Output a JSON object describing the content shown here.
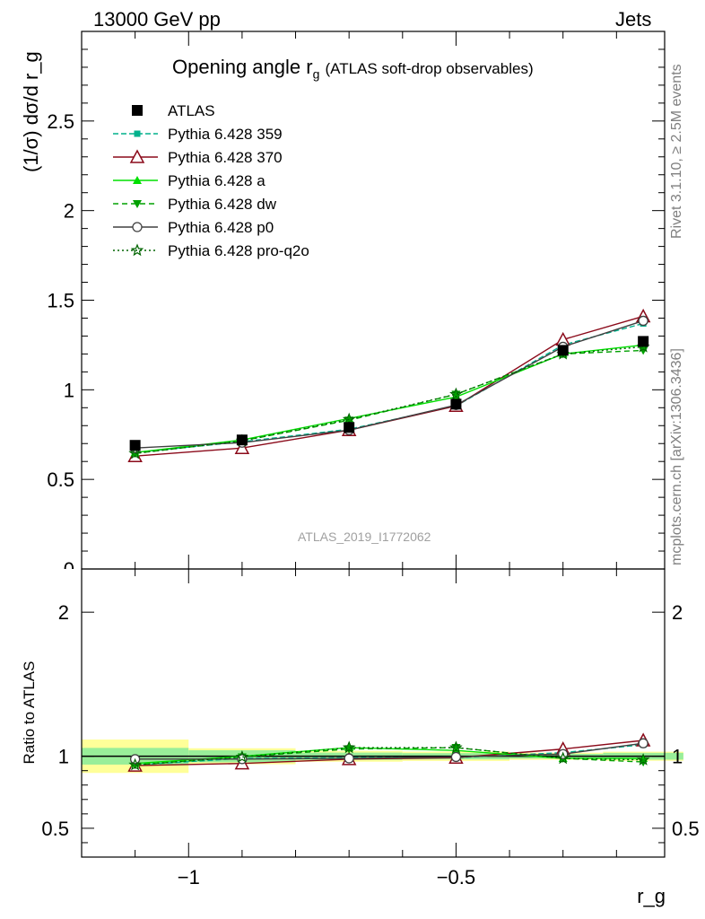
{
  "header": {
    "left": "13000 GeV pp",
    "right": "Jets"
  },
  "side_labels": {
    "rivet": "Rivet 3.1.10, ≥ 2.5M events",
    "mcplots": "mcplots.cern.ch [arXiv:1306.3436]"
  },
  "analysis_id": "ATLAS_2019_I1772062",
  "chart_data": [
    {
      "type": "line",
      "title": "Opening angle r_g (ATLAS soft-drop observables)",
      "title_main": "Opening angle r",
      "title_sub": "g",
      "title_suffix": "(ATLAS soft-drop observables)",
      "xlabel": "r_g",
      "ylabel": "(1/σ) dσ/d r_g",
      "xlim": [
        -1.2,
        -0.11
      ],
      "ylim": [
        0,
        3.0
      ],
      "yticks": [
        0.5,
        1,
        1.5,
        2,
        2.5
      ],
      "ytick_labels": [
        "0.5",
        "1",
        "1.5",
        "2",
        "2.5"
      ],
      "x": [
        -1.1,
        -0.9,
        -0.7,
        -0.5,
        -0.3,
        -0.15
      ],
      "legend_position": "top-left",
      "series": [
        {
          "name": "ATLAS",
          "color": "#000000",
          "marker": "square",
          "dash": "none",
          "values": [
            0.69,
            0.72,
            0.79,
            0.92,
            1.22,
            1.27
          ],
          "band_stat": [
            0.04,
            0.03,
            0.02,
            0.02,
            0.02,
            0.03
          ],
          "band_total": [
            0.08,
            0.04,
            0.03,
            0.03,
            0.03,
            0.04
          ]
        },
        {
          "name": "Pythia 6.428 359",
          "color": "#00b18c",
          "marker": "square-small",
          "dash": "6,3",
          "values": [
            0.65,
            0.71,
            0.78,
            0.91,
            1.25,
            1.37
          ]
        },
        {
          "name": "Pythia 6.428 370",
          "color": "#8b0a1a",
          "marker": "triangle-open",
          "dash": "none",
          "values": [
            0.63,
            0.675,
            0.775,
            0.91,
            1.28,
            1.41
          ]
        },
        {
          "name": "Pythia 6.428 a",
          "color": "#00e000",
          "marker": "triangle",
          "dash": "none",
          "values": [
            0.65,
            0.72,
            0.84,
            0.96,
            1.2,
            1.25
          ]
        },
        {
          "name": "Pythia 6.428 dw",
          "color": "#00a000",
          "marker": "triangle-down",
          "dash": "6,4",
          "values": [
            0.645,
            0.715,
            0.83,
            0.975,
            1.2,
            1.22
          ]
        },
        {
          "name": "Pythia 6.428 p0",
          "color": "#404040",
          "marker": "circle-open",
          "dash": "none",
          "values": [
            0.675,
            0.705,
            0.775,
            0.915,
            1.24,
            1.385
          ]
        },
        {
          "name": "Pythia 6.428 pro-q2o",
          "color": "#006400",
          "marker": "star",
          "dash": "2,3",
          "values": [
            0.645,
            0.715,
            0.835,
            0.975,
            1.2,
            1.24
          ]
        }
      ]
    },
    {
      "type": "line",
      "title": "",
      "xlabel": "r_g",
      "ylabel": "Ratio to ATLAS",
      "xlim": [
        -1.2,
        -0.11
      ],
      "ylim": [
        0.3,
        2.3
      ],
      "xticks": [
        -1,
        -0.5
      ],
      "xtick_labels": [
        "−1",
        "−0.5"
      ],
      "yticks": [
        0.5,
        1,
        2
      ],
      "ytick_labels": [
        "0.5",
        "1",
        "2"
      ],
      "x": [
        -1.1,
        -0.9,
        -0.7,
        -0.5,
        -0.3,
        -0.15
      ],
      "series": [
        {
          "name": "Pythia 6.428 359",
          "values": [
            0.94,
            0.985,
            0.99,
            0.99,
            1.025,
            1.08
          ]
        },
        {
          "name": "Pythia 6.428 370",
          "values": [
            0.935,
            0.95,
            0.98,
            0.99,
            1.05,
            1.11
          ]
        },
        {
          "name": "Pythia 6.428 a",
          "values": [
            0.95,
            1.0,
            1.06,
            1.04,
            0.985,
            0.985
          ]
        },
        {
          "name": "Pythia 6.428 dw",
          "values": [
            0.94,
            0.995,
            1.05,
            1.06,
            0.985,
            0.96
          ]
        },
        {
          "name": "Pythia 6.428 p0",
          "values": [
            0.98,
            0.98,
            0.985,
            0.995,
            1.015,
            1.09
          ]
        },
        {
          "name": "Pythia 6.428 pro-q2o",
          "values": [
            0.94,
            0.995,
            1.06,
            1.06,
            0.985,
            0.975
          ]
        }
      ]
    }
  ]
}
